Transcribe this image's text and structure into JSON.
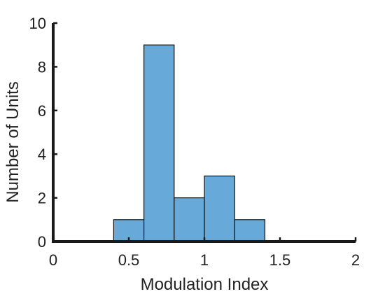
{
  "chart_data": {
    "type": "bar",
    "subtype": "histogram",
    "title": "",
    "xlabel": "Modulation Index",
    "ylabel": "Number of Units",
    "xlim": [
      0,
      2
    ],
    "ylim": [
      0,
      10
    ],
    "xticks": [
      "0",
      "0.5",
      "1",
      "1.5",
      "2"
    ],
    "yticks": [
      "0",
      "2",
      "4",
      "6",
      "8",
      "10"
    ],
    "bins": [
      {
        "start": 0.4,
        "end": 0.6,
        "count": 1
      },
      {
        "start": 0.6,
        "end": 0.8,
        "count": 9
      },
      {
        "start": 0.8,
        "end": 1.0,
        "count": 2
      },
      {
        "start": 1.0,
        "end": 1.2,
        "count": 3
      },
      {
        "start": 1.2,
        "end": 1.4,
        "count": 1
      }
    ],
    "bar_color": "#67a9d9",
    "grid": false,
    "legend": "none"
  }
}
